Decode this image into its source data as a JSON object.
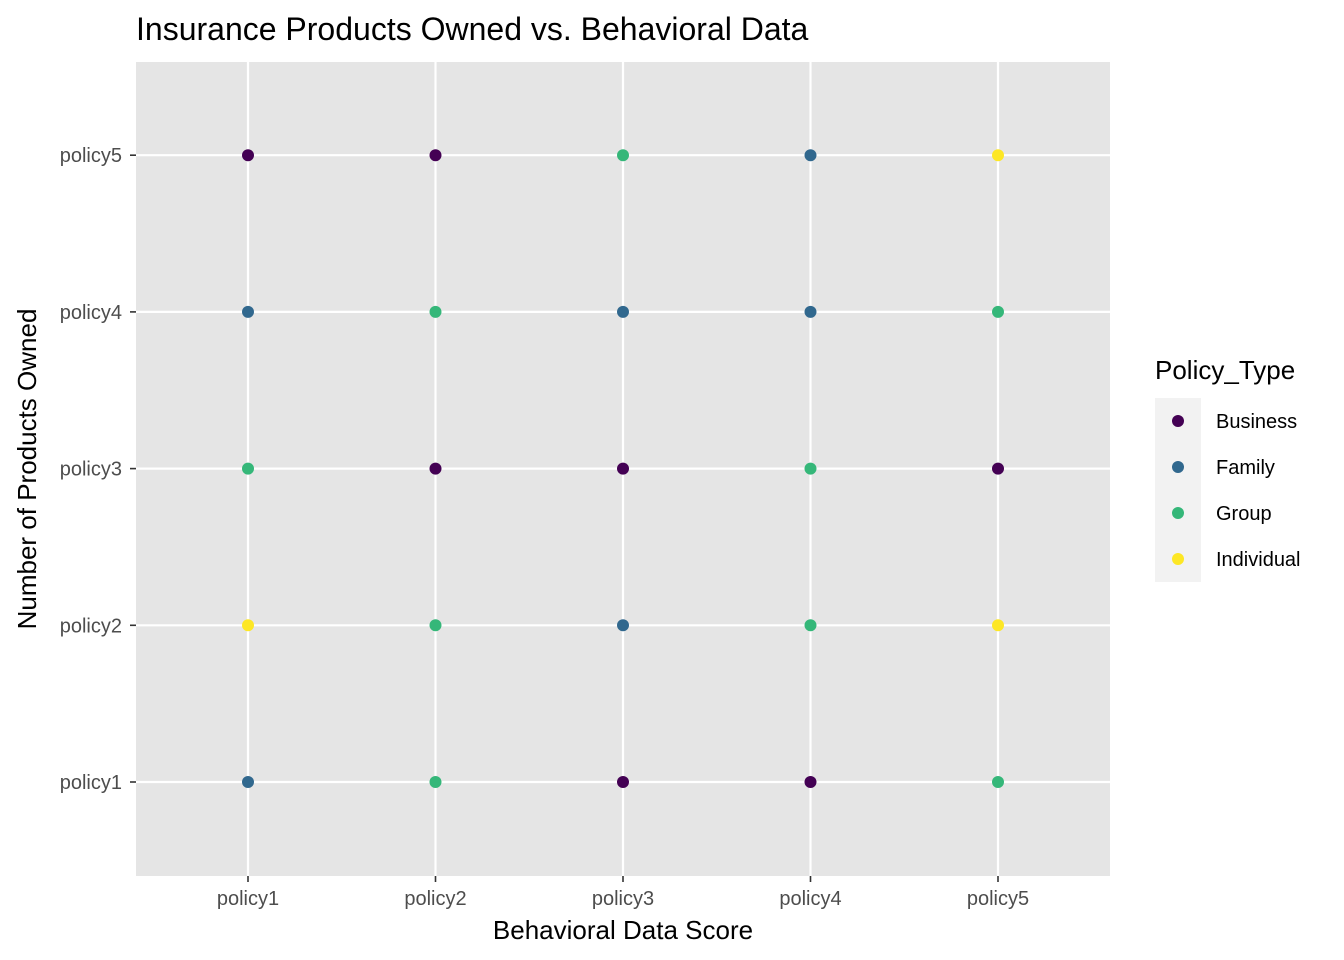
{
  "chart_data": {
    "type": "scatter",
    "title": "Insurance Products Owned vs. Behavioral Data",
    "xlabel": "Behavioral Data Score",
    "ylabel": "Number of Products Owned",
    "x_categories": [
      "policy1",
      "policy2",
      "policy3",
      "policy4",
      "policy5"
    ],
    "y_categories": [
      "policy1",
      "policy2",
      "policy3",
      "policy4",
      "policy5"
    ],
    "grid": true,
    "legend": {
      "title": "Policy_Type",
      "placement": "right",
      "entries": [
        {
          "name": "Business",
          "color": "#440154"
        },
        {
          "name": "Family",
          "color": "#31688e"
        },
        {
          "name": "Group",
          "color": "#35b779"
        },
        {
          "name": "Individual",
          "color": "#fde725"
        }
      ]
    },
    "points": [
      {
        "x": "policy1",
        "y": "policy5",
        "group": "Business"
      },
      {
        "x": "policy1",
        "y": "policy4",
        "group": "Family"
      },
      {
        "x": "policy1",
        "y": "policy3",
        "group": "Group"
      },
      {
        "x": "policy1",
        "y": "policy2",
        "group": "Individual"
      },
      {
        "x": "policy1",
        "y": "policy1",
        "group": "Family"
      },
      {
        "x": "policy2",
        "y": "policy5",
        "group": "Business"
      },
      {
        "x": "policy2",
        "y": "policy4",
        "group": "Group"
      },
      {
        "x": "policy2",
        "y": "policy3",
        "group": "Business"
      },
      {
        "x": "policy2",
        "y": "policy2",
        "group": "Group"
      },
      {
        "x": "policy2",
        "y": "policy1",
        "group": "Group"
      },
      {
        "x": "policy3",
        "y": "policy5",
        "group": "Group"
      },
      {
        "x": "policy3",
        "y": "policy4",
        "group": "Family"
      },
      {
        "x": "policy3",
        "y": "policy3",
        "group": "Business"
      },
      {
        "x": "policy3",
        "y": "policy2",
        "group": "Family"
      },
      {
        "x": "policy3",
        "y": "policy1",
        "group": "Business"
      },
      {
        "x": "policy4",
        "y": "policy5",
        "group": "Family"
      },
      {
        "x": "policy4",
        "y": "policy4",
        "group": "Family"
      },
      {
        "x": "policy4",
        "y": "policy3",
        "group": "Group"
      },
      {
        "x": "policy4",
        "y": "policy2",
        "group": "Group"
      },
      {
        "x": "policy4",
        "y": "policy1",
        "group": "Business"
      },
      {
        "x": "policy5",
        "y": "policy5",
        "group": "Individual"
      },
      {
        "x": "policy5",
        "y": "policy4",
        "group": "Group"
      },
      {
        "x": "policy5",
        "y": "policy3",
        "group": "Business"
      },
      {
        "x": "policy5",
        "y": "policy2",
        "group": "Individual"
      },
      {
        "x": "policy5",
        "y": "policy1",
        "group": "Group"
      }
    ]
  }
}
